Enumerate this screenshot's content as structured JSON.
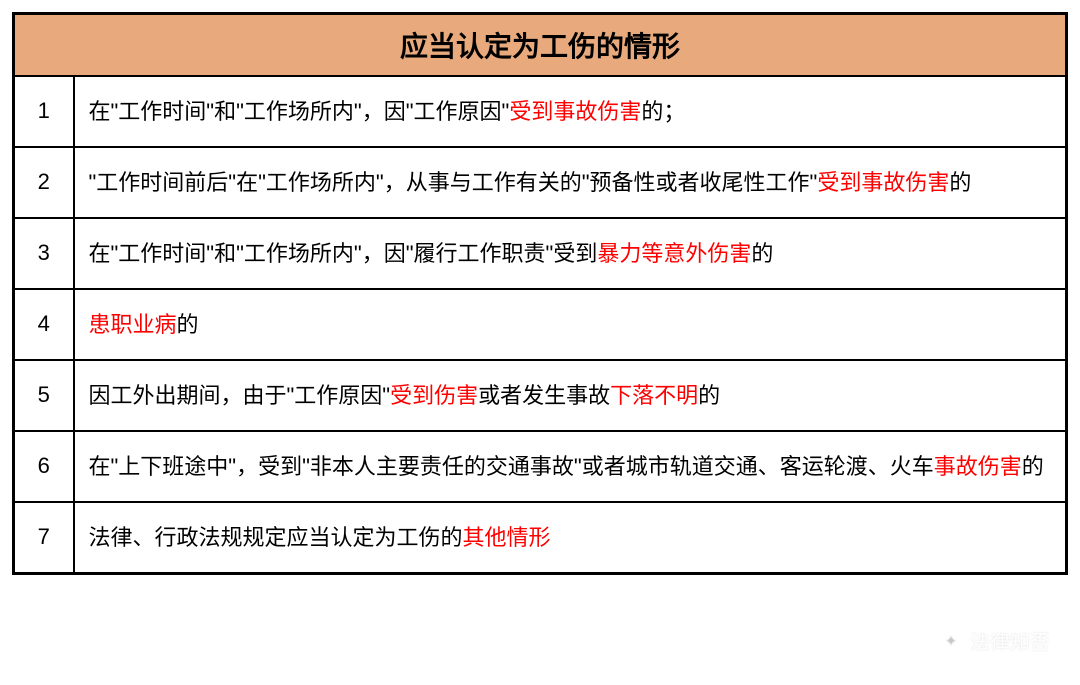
{
  "table": {
    "title": "应当认定为工伤的情形",
    "title_bg": "#e8aa7c",
    "title_fontsize": 28,
    "border_color": "#000000",
    "cell_bg": "#ffffff",
    "text_color": "#000000",
    "highlight_color": "#ff0000",
    "row_fontsize": 22,
    "num_col_width": 60,
    "rows": [
      {
        "num": "1",
        "segments": [
          {
            "text": "在\"工作时间\"和\"工作场所内\"，因\"工作原因\"",
            "red": false
          },
          {
            "text": "受到事故伤害",
            "red": true
          },
          {
            "text": "的；",
            "red": false
          }
        ]
      },
      {
        "num": "2",
        "segments": [
          {
            "text": "\"工作时间前后\"在\"工作场所内\"，从事与工作有关的\"预备性或者收尾性工作\"",
            "red": false
          },
          {
            "text": "受到事故伤害",
            "red": true
          },
          {
            "text": "的",
            "red": false
          }
        ]
      },
      {
        "num": "3",
        "segments": [
          {
            "text": "在\"工作时间\"和\"工作场所内\"，因\"履行工作职责\"受到",
            "red": false
          },
          {
            "text": "暴力等意外伤害",
            "red": true
          },
          {
            "text": "的",
            "red": false
          }
        ]
      },
      {
        "num": "4",
        "segments": [
          {
            "text": "患职业病",
            "red": true
          },
          {
            "text": "的",
            "red": false
          }
        ]
      },
      {
        "num": "5",
        "segments": [
          {
            "text": "因工外出期间，由于\"工作原因\"",
            "red": false
          },
          {
            "text": "受到伤害",
            "red": true
          },
          {
            "text": "或者发生事故",
            "red": false
          },
          {
            "text": "下落不明",
            "red": true
          },
          {
            "text": "的",
            "red": false
          }
        ]
      },
      {
        "num": "6",
        "segments": [
          {
            "text": "在\"上下班途中\"，受到\"非本人主要责任的交通事故\"或者城市轨道交通、客运轮渡、火车",
            "red": false
          },
          {
            "text": "事故伤害",
            "red": true
          },
          {
            "text": "的",
            "red": false
          }
        ]
      },
      {
        "num": "7",
        "segments": [
          {
            "text": "法律、行政法规规定应当认定为工伤的",
            "red": false
          },
          {
            "text": "其他情形",
            "red": true
          }
        ]
      }
    ]
  },
  "watermark": {
    "text": "法律知否",
    "icon_glyph": "✦"
  }
}
